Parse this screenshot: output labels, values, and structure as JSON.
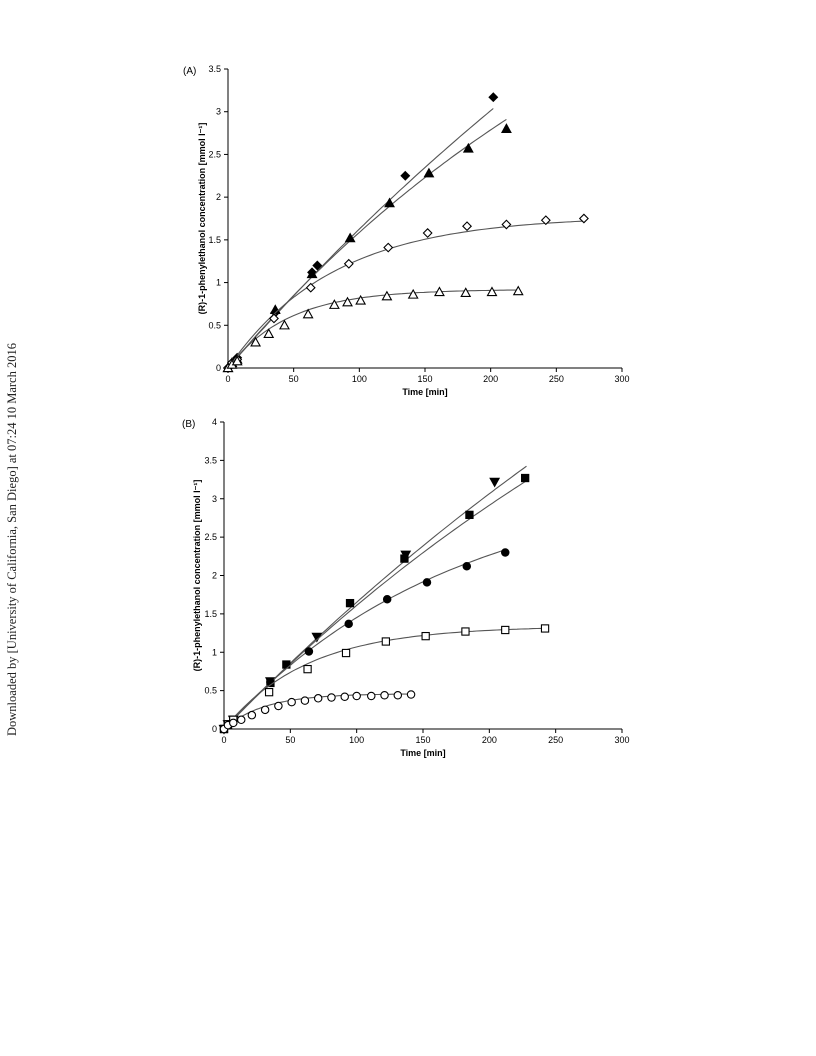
{
  "side_note": "Downloaded by [University of California, San Diego] at 07:24 10 March 2016",
  "colors": {
    "axis": "#000000",
    "fit_line": "#555555",
    "marker": "#000000"
  },
  "chart_data": [
    {
      "type": "scatter",
      "panel_label": "(A)",
      "xlabel": "Time [min]",
      "ylabel": "(R)-1-phenylethanol concentration [mmol l⁻¹]",
      "xlim": [
        0,
        300
      ],
      "ylim": [
        0,
        3.5
      ],
      "x_ticks": [
        "0",
        "50",
        "100",
        "150",
        "200",
        "250",
        "300"
      ],
      "y_ticks": [
        "0",
        "0.5",
        "1",
        "1.5",
        "2",
        "2.5",
        "3",
        "3.5"
      ],
      "grid": false,
      "legend": "none",
      "series": [
        {
          "marker": "diamond-filled",
          "x": [
            0,
            3,
            7,
            36,
            64,
            68,
            135,
            202
          ],
          "y": [
            0,
            0.06,
            0.12,
            0.65,
            1.12,
            1.2,
            2.25,
            3.17
          ],
          "fit": {
            "type": "saturation",
            "ymax": 11.0,
            "k": 0.0016,
            "xmax": 202
          }
        },
        {
          "marker": "triangle-filled",
          "x": [
            0,
            3,
            7,
            36,
            64,
            93,
            123,
            153,
            183,
            212
          ],
          "y": [
            0,
            0.06,
            0.1,
            0.68,
            1.1,
            1.52,
            1.93,
            2.28,
            2.57,
            2.8
          ],
          "fit": {
            "type": "saturation",
            "ymax": 6.5,
            "k": 0.0028,
            "xmax": 212
          }
        },
        {
          "marker": "diamond-open",
          "x": [
            0,
            3,
            7,
            35,
            63,
            92,
            122,
            152,
            182,
            212,
            242,
            271
          ],
          "y": [
            0,
            0.06,
            0.1,
            0.58,
            0.94,
            1.22,
            1.41,
            1.58,
            1.66,
            1.68,
            1.73,
            1.75
          ],
          "fit": {
            "type": "saturation",
            "ymax": 1.78,
            "k": 0.0125,
            "xmax": 271
          }
        },
        {
          "marker": "triangle-open",
          "x": [
            0,
            3,
            7,
            21,
            31,
            43,
            61,
            81,
            91,
            101,
            121,
            141,
            161,
            181,
            201,
            221
          ],
          "y": [
            0,
            0.04,
            0.08,
            0.3,
            0.4,
            0.5,
            0.63,
            0.74,
            0.77,
            0.79,
            0.84,
            0.86,
            0.89,
            0.88,
            0.89,
            0.9
          ],
          "fit": {
            "type": "saturation",
            "ymax": 0.92,
            "k": 0.022,
            "xmax": 221
          }
        }
      ]
    },
    {
      "type": "scatter",
      "panel_label": "(B)",
      "xlabel": "Time [min]",
      "ylabel": "(R)-1-phenylethanol concentration [mmol l⁻¹]",
      "xlim": [
        0,
        300
      ],
      "ylim": [
        0,
        4
      ],
      "x_ticks": [
        "0",
        "50",
        "100",
        "150",
        "200",
        "250",
        "300"
      ],
      "y_ticks": [
        "0",
        "0.5",
        "1",
        "1.5",
        "2",
        "2.5",
        "3",
        "3.5",
        "4"
      ],
      "grid": false,
      "legend": "none",
      "series": [
        {
          "marker": "triangle-down-filled",
          "x": [
            0,
            3,
            7,
            35,
            70,
            137,
            204
          ],
          "y": [
            0,
            0.06,
            0.12,
            0.62,
            1.2,
            2.27,
            3.22
          ],
          "fit": {
            "type": "saturation",
            "ymax": 11.5,
            "k": 0.00155,
            "xmax": 228
          }
        },
        {
          "marker": "square-filled",
          "x": [
            0,
            3,
            7,
            35,
            47,
            95,
            136,
            185,
            227
          ],
          "y": [
            0,
            0.06,
            0.12,
            0.6,
            0.84,
            1.64,
            2.22,
            2.79,
            3.27
          ],
          "fit": {
            "type": "saturation",
            "ymax": 8.5,
            "k": 0.0021,
            "xmax": 228
          }
        },
        {
          "marker": "circle-filled",
          "x": [
            0,
            3,
            7,
            35,
            64,
            94,
            123,
            153,
            183,
            212
          ],
          "y": [
            0,
            0.06,
            0.12,
            0.61,
            1.01,
            1.37,
            1.69,
            1.91,
            2.12,
            2.3
          ],
          "fit": {
            "type": "saturation",
            "ymax": 3.3,
            "k": 0.0058,
            "xmax": 212
          }
        },
        {
          "marker": "square-open",
          "x": [
            0,
            3,
            7,
            34,
            63,
            92,
            122,
            152,
            182,
            212,
            242
          ],
          "y": [
            0,
            0.06,
            0.12,
            0.48,
            0.78,
            0.99,
            1.14,
            1.21,
            1.27,
            1.29,
            1.31
          ],
          "fit": {
            "type": "saturation",
            "ymax": 1.34,
            "k": 0.016,
            "xmax": 242
          }
        },
        {
          "marker": "circle-open",
          "x": [
            0,
            3,
            7,
            13,
            21,
            31,
            41,
            51,
            61,
            71,
            81,
            91,
            100,
            111,
            121,
            131,
            141
          ],
          "y": [
            0,
            0.05,
            0.08,
            0.12,
            0.18,
            0.25,
            0.3,
            0.35,
            0.37,
            0.4,
            0.41,
            0.42,
            0.43,
            0.43,
            0.44,
            0.44,
            0.45
          ],
          "fit": {
            "type": "saturation",
            "ymax": 0.46,
            "k": 0.033,
            "xmax": 141
          }
        }
      ]
    }
  ]
}
